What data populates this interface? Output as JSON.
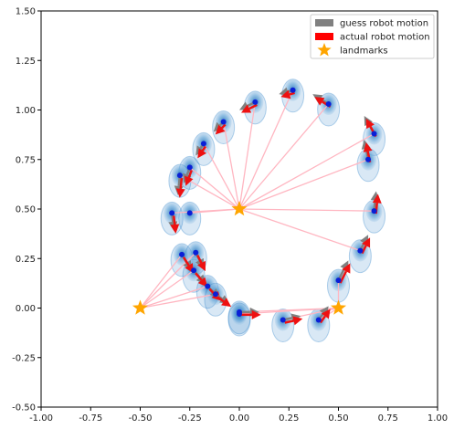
{
  "chart_data": {
    "type": "scatter",
    "title": "",
    "xlabel": "",
    "ylabel": "",
    "xlim": [
      -1.0,
      1.0
    ],
    "ylim": [
      -0.5,
      1.5
    ],
    "xticks": [
      "-1.00",
      "-0.75",
      "-0.50",
      "-0.25",
      "0.00",
      "0.25",
      "0.50",
      "0.75",
      "1.00"
    ],
    "yticks": [
      "-0.50",
      "-0.25",
      "0.00",
      "0.25",
      "0.50",
      "0.75",
      "1.00",
      "1.25",
      "1.50"
    ],
    "grid": false,
    "legend_position": "top-right",
    "legend": [
      {
        "label": "guess robot motion",
        "symbol": "bar",
        "color": "#808080"
      },
      {
        "label": "actual robot motion",
        "symbol": "bar",
        "color": "#ff0000"
      },
      {
        "label": "landmarks",
        "symbol": "star",
        "color": "#ffa500"
      }
    ],
    "colors": {
      "guess": "#808080",
      "actual": "#ee1111",
      "landmark": "#ffa500",
      "estimate_point": "#0a1fd6",
      "ellipse": "#2a80c8",
      "observation_line": "#ffb6c1"
    },
    "landmarks": [
      {
        "x": 0.0,
        "y": 0.5
      },
      {
        "x": 0.5,
        "y": 0.0
      },
      {
        "x": -0.5,
        "y": 0.0
      }
    ],
    "poses": [
      {
        "x": 0.0,
        "y": -0.02,
        "dx": 0.1,
        "dy": 0.0,
        "obs": [
          0.5,
          0.0
        ]
      },
      {
        "x": 0.22,
        "y": -0.06,
        "dx": 0.09,
        "dy": 0.02,
        "obs": [
          0.5,
          0.0
        ]
      },
      {
        "x": 0.4,
        "y": -0.06,
        "dx": 0.05,
        "dy": 0.07,
        "obs": [
          0.5,
          0.0
        ]
      },
      {
        "x": 0.5,
        "y": 0.14,
        "dx": 0.05,
        "dy": 0.1,
        "obs": [
          0.5,
          0.0
        ]
      },
      {
        "x": 0.61,
        "y": 0.29,
        "dx": 0.04,
        "dy": 0.08,
        "obs": [
          0.0,
          0.5
        ]
      },
      {
        "x": 0.68,
        "y": 0.49,
        "dx": 0.01,
        "dy": 0.1,
        "obs": [
          0.0,
          0.5
        ]
      },
      {
        "x": 0.68,
        "y": 0.88,
        "dx": -0.05,
        "dy": 0.09,
        "obs": [
          0.0,
          0.5
        ]
      },
      {
        "x": 0.65,
        "y": 0.75,
        "dx": -0.02,
        "dy": 0.1,
        "obs": [
          0.0,
          0.5
        ]
      },
      {
        "x": 0.45,
        "y": 1.03,
        "dx": -0.08,
        "dy": 0.05,
        "obs": [
          0.0,
          0.5
        ]
      },
      {
        "x": 0.27,
        "y": 1.1,
        "dx": -0.07,
        "dy": -0.02,
        "obs": [
          0.0,
          0.5
        ]
      },
      {
        "x": 0.08,
        "y": 1.04,
        "dx": -0.08,
        "dy": -0.04,
        "obs": [
          0.0,
          0.5
        ]
      },
      {
        "x": -0.08,
        "y": 0.94,
        "dx": -0.05,
        "dy": -0.05,
        "obs": [
          0.0,
          0.5
        ]
      },
      {
        "x": -0.18,
        "y": 0.83,
        "dx": -0.04,
        "dy": -0.06,
        "obs": [
          0.0,
          0.5
        ]
      },
      {
        "x": -0.25,
        "y": 0.71,
        "dx": -0.03,
        "dy": -0.08,
        "obs": [
          0.0,
          0.5
        ]
      },
      {
        "x": -0.3,
        "y": 0.67,
        "dx": -0.01,
        "dy": -0.1,
        "obs": [
          0.0,
          0.5
        ]
      },
      {
        "x": -0.34,
        "y": 0.48,
        "dx": 0.01,
        "dy": -0.09,
        "obs": [
          0.0,
          0.5
        ]
      },
      {
        "x": -0.25,
        "y": 0.48,
        "dx": 0.0,
        "dy": 0.0,
        "obs": [
          0.0,
          0.5
        ]
      },
      {
        "x": -0.29,
        "y": 0.27,
        "dx": 0.05,
        "dy": -0.08,
        "obs": [
          -0.5,
          0.0
        ]
      },
      {
        "x": -0.22,
        "y": 0.28,
        "dx": 0.04,
        "dy": -0.08,
        "obs": [
          -0.5,
          0.0
        ]
      },
      {
        "x": -0.23,
        "y": 0.19,
        "dx": 0.06,
        "dy": -0.07,
        "obs": [
          -0.5,
          0.0
        ]
      },
      {
        "x": -0.16,
        "y": 0.11,
        "dx": 0.06,
        "dy": -0.06,
        "obs": [
          -0.5,
          0.0
        ]
      },
      {
        "x": -0.12,
        "y": 0.07,
        "dx": 0.07,
        "dy": -0.05,
        "obs": [
          -0.5,
          0.0
        ]
      },
      {
        "x": 0.0,
        "y": -0.03,
        "dx": 0.0,
        "dy": 0.0,
        "obs": [
          0.5,
          0.0
        ]
      }
    ]
  }
}
